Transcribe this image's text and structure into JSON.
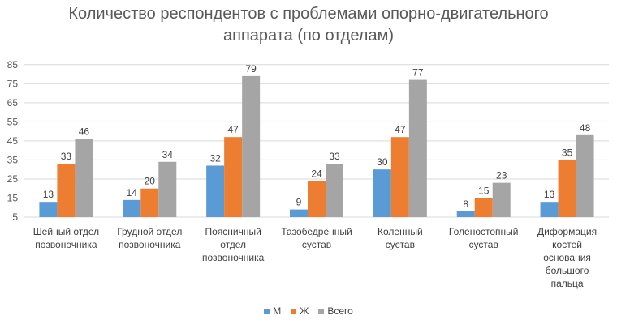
{
  "chart_data": {
    "type": "bar",
    "title_line1": "Количество респондентов с проблемами опорно-двигательного",
    "title_line2": "аппарата (по отделам)",
    "categories": [
      [
        "Шейный отдел",
        "позвоночника"
      ],
      [
        "Грудной отдел",
        "позвоночника"
      ],
      [
        "Поясничный",
        "отдел",
        "позвоночника"
      ],
      [
        "Тазобедренный",
        "сустав"
      ],
      [
        "Коленный",
        "сустав"
      ],
      [
        "Голеностопный",
        "сустав"
      ],
      [
        "Диформация",
        "костей",
        "основания",
        "большого",
        "пальца"
      ]
    ],
    "series": [
      {
        "name": "М",
        "color": "#5B9BD5",
        "values": [
          13,
          14,
          32,
          9,
          30,
          8,
          13
        ]
      },
      {
        "name": "Ж",
        "color": "#ED7D31",
        "values": [
          33,
          20,
          47,
          24,
          47,
          15,
          35
        ]
      },
      {
        "name": "Всего",
        "color": "#A5A5A5",
        "values": [
          46,
          34,
          79,
          33,
          77,
          23,
          48
        ]
      }
    ],
    "yticks": [
      5,
      15,
      25,
      35,
      45,
      55,
      65,
      75,
      85
    ],
    "ylim": [
      5,
      90
    ],
    "legend_position": "bottom",
    "grid": true
  }
}
